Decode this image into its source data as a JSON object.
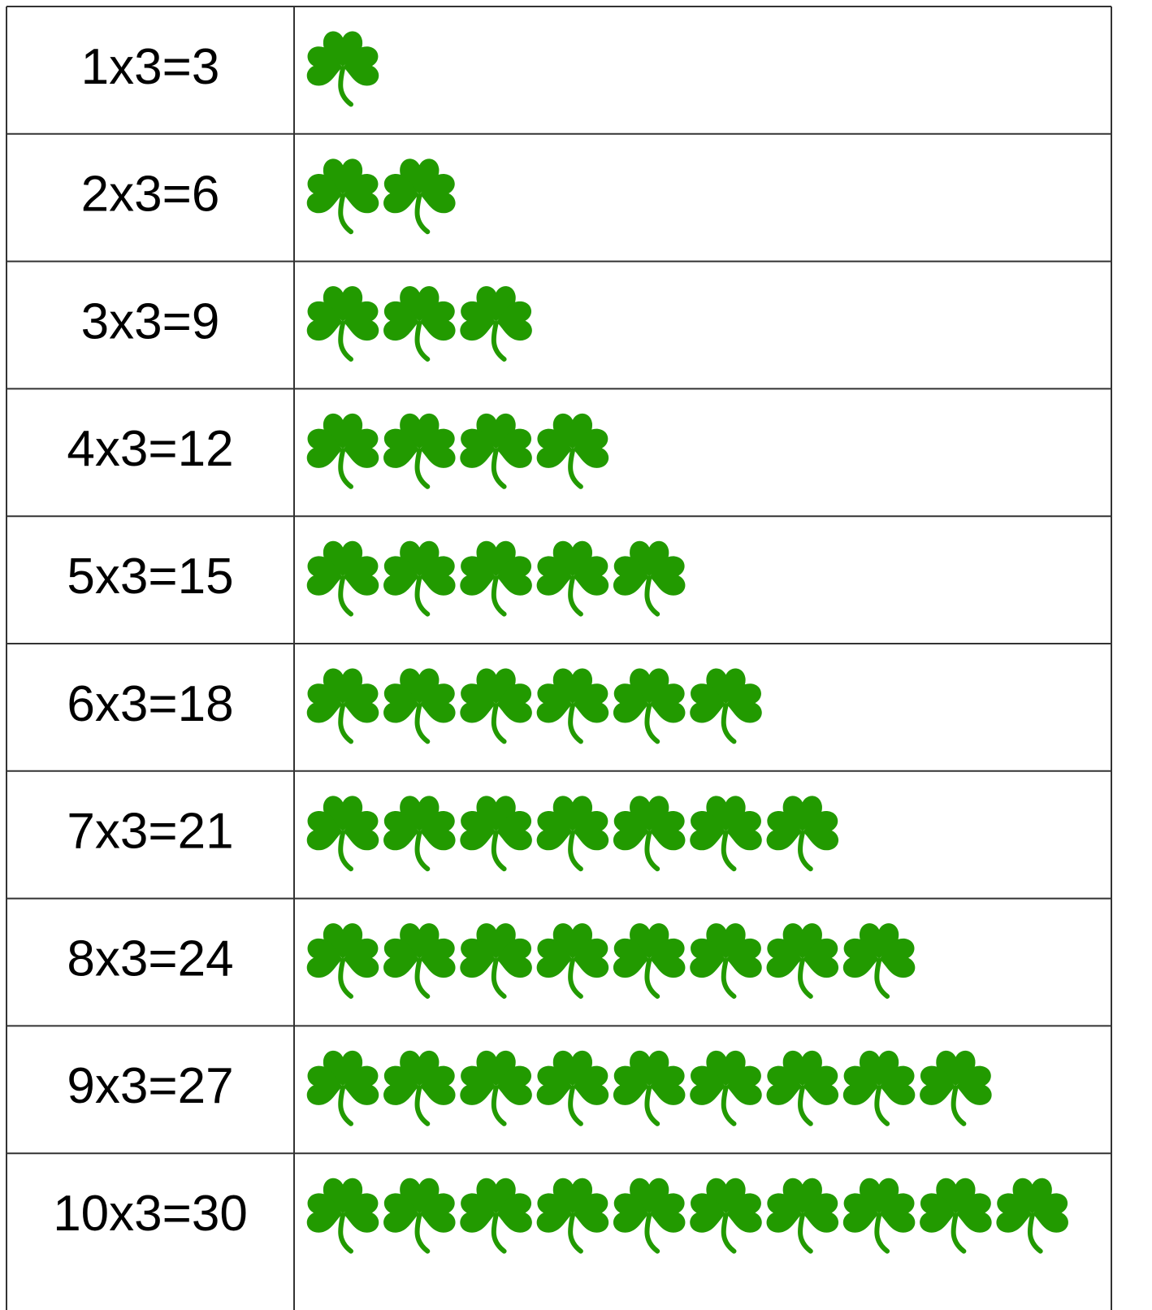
{
  "rows": [
    {
      "label": "1x3=3",
      "count": 1
    },
    {
      "label": "2x3=6",
      "count": 2
    },
    {
      "label": "3x3=9",
      "count": 3
    },
    {
      "label": "4x3=12",
      "count": 4
    },
    {
      "label": "5x3=15",
      "count": 5
    },
    {
      "label": "6x3=18",
      "count": 6
    },
    {
      "label": "7x3=21",
      "count": 7
    },
    {
      "label": "8x3=24",
      "count": 8
    },
    {
      "label": "9x3=27",
      "count": 9
    },
    {
      "label": "10x3=30",
      "count": 10
    }
  ]
}
